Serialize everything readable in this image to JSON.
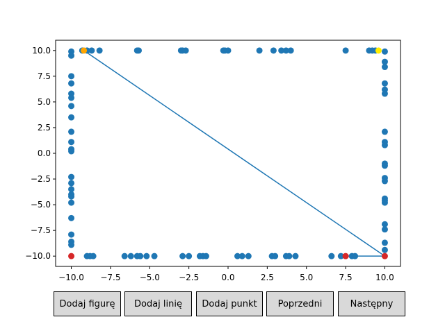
{
  "buttons": [
    {
      "id": "add-figure",
      "label": "Dodaj figurę"
    },
    {
      "id": "add-line",
      "label": "Dodaj linię"
    },
    {
      "id": "add-point",
      "label": "Dodaj punkt"
    },
    {
      "id": "previous",
      "label": "Poprzedni"
    },
    {
      "id": "next",
      "label": "Następny"
    }
  ],
  "chart_data": {
    "type": "scatter",
    "xlim": [
      -11,
      11
    ],
    "ylim": [
      -11,
      11
    ],
    "x_ticks": [
      -10.0,
      -7.5,
      -5.0,
      -2.5,
      0.0,
      2.5,
      5.0,
      7.5,
      10.0
    ],
    "y_ticks": [
      -10.0,
      -7.5,
      -5.0,
      -2.5,
      0.0,
      2.5,
      5.0,
      7.5,
      10.0
    ],
    "x_tick_labels": [
      "−10.0",
      "−7.5",
      "−5.0",
      "−2.5",
      "0.0",
      "2.5",
      "5.0",
      "7.5",
      "10.0"
    ],
    "y_tick_labels": [
      "−10.0",
      "−7.5",
      "−5.0",
      "−2.5",
      "0.0",
      "2.5",
      "5.0",
      "7.5",
      "10.0"
    ],
    "grid": false,
    "colors": {
      "points": "#1f77b4",
      "line": "#1f77b4",
      "red": "#d62728",
      "orange": "#ffa500",
      "yellow": "#ffee00"
    },
    "points": {
      "top": [
        [
          -9.3,
          10
        ],
        [
          -9,
          10
        ],
        [
          -8.7,
          10
        ],
        [
          -8.2,
          10
        ],
        [
          -5.8,
          10
        ],
        [
          -5.7,
          10
        ],
        [
          -3,
          10
        ],
        [
          -2.9,
          10
        ],
        [
          -2.7,
          10
        ],
        [
          -0.3,
          10
        ],
        [
          -0.2,
          10
        ],
        [
          0,
          10
        ],
        [
          2,
          10
        ],
        [
          2.9,
          10
        ],
        [
          3.4,
          10
        ],
        [
          3.7,
          10
        ],
        [
          4,
          10
        ],
        [
          7.5,
          10
        ],
        [
          9,
          10
        ],
        [
          9.2,
          10
        ],
        [
          9.4,
          10
        ]
      ],
      "bottom": [
        [
          -9,
          -10
        ],
        [
          -8.8,
          -10
        ],
        [
          -8.6,
          -10
        ],
        [
          -6.6,
          -10
        ],
        [
          -6.2,
          -10
        ],
        [
          -5.8,
          -10
        ],
        [
          -5.6,
          -10
        ],
        [
          -5.2,
          -10
        ],
        [
          -4.7,
          -10
        ],
        [
          -2.9,
          -10
        ],
        [
          -2.5,
          -10
        ],
        [
          -1.8,
          -10
        ],
        [
          -1.6,
          -10
        ],
        [
          -1.4,
          -10
        ],
        [
          0.6,
          -10
        ],
        [
          0.9,
          -10
        ],
        [
          1.3,
          -10
        ],
        [
          2.8,
          -10
        ],
        [
          3,
          -10
        ],
        [
          3.7,
          -10
        ],
        [
          3.9,
          -10
        ],
        [
          4.3,
          -10
        ],
        [
          6.6,
          -10
        ],
        [
          7.2,
          -10
        ],
        [
          7.9,
          -10
        ],
        [
          8.1,
          -10
        ]
      ],
      "left": [
        [
          -10,
          9.9
        ],
        [
          -10,
          9.5
        ],
        [
          -10,
          7.5
        ],
        [
          -10,
          6.8
        ],
        [
          -10,
          5.8
        ],
        [
          -10,
          5.4
        ],
        [
          -10,
          4.6
        ],
        [
          -10,
          3.5
        ],
        [
          -10,
          2.1
        ],
        [
          -10,
          1.1
        ],
        [
          -10,
          0.4
        ],
        [
          -10,
          0.2
        ],
        [
          -10,
          -2.3
        ],
        [
          -10,
          -2.9
        ],
        [
          -10,
          -3.5
        ],
        [
          -10,
          -4
        ],
        [
          -10,
          -4.2
        ],
        [
          -10,
          -4.8
        ],
        [
          -10,
          -6.3
        ],
        [
          -10,
          -7.9
        ],
        [
          -10,
          -8.6
        ],
        [
          -10,
          -8.9
        ]
      ],
      "right": [
        [
          10,
          9.9
        ],
        [
          10,
          8.9
        ],
        [
          10,
          8.4
        ],
        [
          10,
          6.8
        ],
        [
          10,
          6.2
        ],
        [
          10,
          5.8
        ],
        [
          10,
          2.1
        ],
        [
          10,
          1.1
        ],
        [
          10,
          0.8
        ],
        [
          10,
          -1
        ],
        [
          10,
          -1.2
        ],
        [
          10,
          -2.4
        ],
        [
          10,
          -2.7
        ],
        [
          10,
          -4.4
        ],
        [
          10,
          -4.6
        ],
        [
          10,
          -4.8
        ],
        [
          10,
          -6.9
        ],
        [
          10,
          -7.4
        ],
        [
          10,
          -8.7
        ],
        [
          10,
          -9.4
        ]
      ],
      "red": [
        [
          -10,
          -10
        ],
        [
          7.5,
          -10
        ],
        [
          10,
          -10
        ]
      ],
      "orange": [
        [
          -9.2,
          10
        ]
      ],
      "yellow": [
        [
          9.6,
          10
        ]
      ]
    },
    "line": [
      [
        -9.2,
        10
      ],
      [
        10,
        -10
      ],
      [
        7.5,
        -10
      ]
    ]
  }
}
